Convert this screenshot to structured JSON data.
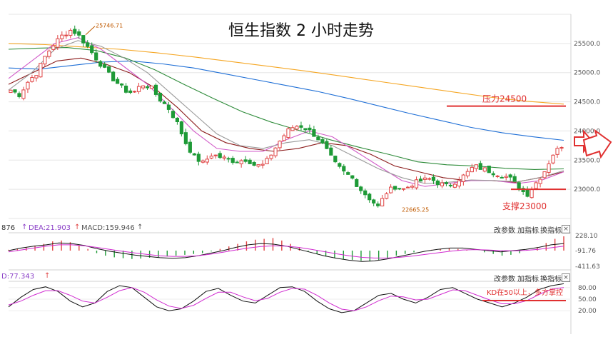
{
  "chart_data": {
    "type": "candlestick",
    "title": "恒生指数 2 小时走势",
    "yticks": [
      22500,
      23000,
      23500,
      24000,
      24500,
      25000,
      25500,
      26000
    ],
    "ytick_labels": [
      "23000.0",
      "23500.0",
      "24000.0",
      "24500.0",
      "25000.0",
      "25500.0"
    ],
    "high_label": "25746.71",
    "low_label": "22665.25",
    "close_path": [
      24700,
      24620,
      24850,
      25000,
      25300,
      25500,
      25650,
      25740,
      25600,
      25400,
      25200,
      25000,
      24850,
      24700,
      24650,
      24800,
      24750,
      24550,
      24400,
      24150,
      23800,
      23550,
      23450,
      23600,
      23550,
      23500,
      23480,
      23520,
      23400,
      23420,
      23650,
      23880,
      24050,
      24100,
      24020,
      23900,
      23700,
      23450,
      23300,
      23200,
      23000,
      22850,
      22700,
      22950,
      23050,
      23000,
      23100,
      23150,
      23180,
      23100,
      23050,
      23150,
      23250,
      23400,
      23350,
      23300,
      23250,
      23200,
      23050,
      22900,
      23100,
      23300,
      23600,
      23750
    ],
    "moving_averages": [
      {
        "color": "#f5a623",
        "values": [
          25500,
          25480,
          25440,
          25400,
          25340,
          25270,
          25190,
          25110,
          25030,
          24940,
          24850,
          24760,
          24670,
          24580,
          24510,
          24460
        ]
      },
      {
        "color": "#1f6fd6",
        "values": [
          25080,
          25060,
          25120,
          25180,
          25200,
          25150,
          25080,
          24980,
          24880,
          24780,
          24680,
          24560,
          24430,
          24300,
          24180,
          24060,
          23970,
          23900,
          23840
        ]
      },
      {
        "color": "#2e8b3a",
        "values": [
          25400,
          25420,
          25430,
          25380,
          25250,
          25050,
          24800,
          24560,
          24330,
          24150,
          24000,
          23850,
          23720,
          23600,
          23470,
          23420,
          23400,
          23360,
          23340,
          23350
        ]
      },
      {
        "color": "#8b1a1a",
        "values": [
          24800,
          25000,
          25200,
          25250,
          25150,
          25000,
          24750,
          24400,
          24000,
          23800,
          23700,
          23650,
          23700,
          23800,
          23750,
          23600,
          23400,
          23300,
          23200,
          23150,
          23150,
          23120,
          23200,
          23300
        ]
      },
      {
        "color": "#d15ac8",
        "values": [
          24900,
          25200,
          25500,
          25600,
          25400,
          25100,
          24800,
          24400,
          24000,
          23700,
          23650,
          23650,
          23850,
          24000,
          23900,
          23650,
          23400,
          23150,
          23050,
          23100,
          23150,
          23150,
          23100,
          23150,
          23300
        ]
      },
      {
        "color": "#9a9a9a",
        "values": [
          24700,
          25000,
          25400,
          25550,
          25450,
          25250,
          25000,
          24650,
          24300,
          23950,
          23750,
          23700,
          23800,
          23850,
          23750,
          23550,
          23350,
          23200,
          23100,
          23120,
          23160,
          23150,
          23130,
          23200,
          23320
        ]
      }
    ],
    "annotations": {
      "resistance_label": "压力24500",
      "resistance_value": 24500,
      "support_label": "支撑23000",
      "support_value": 23000,
      "kd_note": "KD在50以上，多方掌控"
    },
    "macd": {
      "header_prefix": "876",
      "dea_label": "DEA:21.903",
      "macd_label": "MACD:159.946",
      "ytick_labels": [
        "228.10",
        "-91.76",
        "-411.63"
      ],
      "bars": [
        10,
        20,
        40,
        60,
        80,
        110,
        120,
        100,
        60,
        20,
        -30,
        -60,
        -80,
        -90,
        -100,
        -95,
        -85,
        -80,
        -70,
        -60,
        -50,
        -40,
        -30,
        -10,
        20,
        50,
        80,
        110,
        130,
        140,
        150,
        120,
        80,
        40,
        -10,
        -40,
        -70,
        -90,
        -100,
        -110,
        -120,
        -125,
        -110,
        -90,
        -60,
        -40,
        -20,
        0,
        10,
        20,
        25,
        20,
        10,
        0,
        -20,
        -40,
        -60,
        -50,
        -30,
        0,
        40,
        90,
        140,
        170
      ],
      "dif": [
        0.0,
        0.2,
        0.35,
        0.45,
        0.6,
        0.55,
        0.4,
        0.15,
        -0.05,
        -0.2,
        -0.35,
        -0.45,
        -0.55,
        -0.6,
        -0.55,
        -0.4,
        -0.2,
        0.0,
        0.25,
        0.45,
        0.55,
        0.5,
        0.35,
        0.1,
        -0.15,
        -0.4,
        -0.6,
        -0.75,
        -0.85,
        -0.8,
        -0.65,
        -0.45,
        -0.25,
        -0.05,
        0.1,
        0.2,
        0.2,
        0.1,
        0.0,
        -0.1,
        0.0,
        0.1,
        0.25,
        0.45,
        0.55
      ],
      "dea": [
        -0.1,
        0.05,
        0.2,
        0.35,
        0.45,
        0.45,
        0.38,
        0.25,
        0.1,
        -0.05,
        -0.18,
        -0.3,
        -0.4,
        -0.45,
        -0.45,
        -0.4,
        -0.28,
        -0.12,
        0.05,
        0.2,
        0.32,
        0.37,
        0.35,
        0.25,
        0.1,
        -0.08,
        -0.25,
        -0.4,
        -0.52,
        -0.58,
        -0.58,
        -0.52,
        -0.42,
        -0.3,
        -0.17,
        -0.05,
        0.05,
        0.08,
        0.05,
        0.0,
        -0.02,
        0.02,
        0.1,
        0.22,
        0.35
      ]
    },
    "kdj": {
      "header_label": "D:77.343",
      "ytick_labels": [
        "80.00",
        "50.00",
        "20.00"
      ],
      "k": [
        30,
        55,
        75,
        82,
        70,
        45,
        30,
        40,
        70,
        85,
        80,
        55,
        30,
        20,
        25,
        45,
        70,
        78,
        60,
        45,
        40,
        60,
        80,
        82,
        70,
        45,
        25,
        15,
        20,
        40,
        60,
        65,
        50,
        40,
        55,
        75,
        80,
        65,
        50,
        40,
        30,
        40,
        55,
        75,
        85,
        90
      ],
      "d": [
        35,
        45,
        60,
        72,
        72,
        60,
        45,
        40,
        55,
        72,
        80,
        68,
        48,
        32,
        26,
        34,
        52,
        68,
        68,
        56,
        46,
        52,
        68,
        78,
        76,
        60,
        40,
        24,
        20,
        30,
        46,
        58,
        56,
        48,
        50,
        62,
        74,
        72,
        60,
        48,
        38,
        38,
        46,
        62,
        76,
        80
      ]
    }
  },
  "toolbar": {
    "params": "改参数",
    "add_indicator": "加指标",
    "switch_indicator": "换指标",
    "close_glyph": "×"
  },
  "colors": {
    "up": "#e04444",
    "down": "#1e9a37",
    "resistance_line": "#e03030",
    "annotation_text": "#e03030",
    "grid": "#e5e5e5",
    "axis_text": "#555555"
  }
}
